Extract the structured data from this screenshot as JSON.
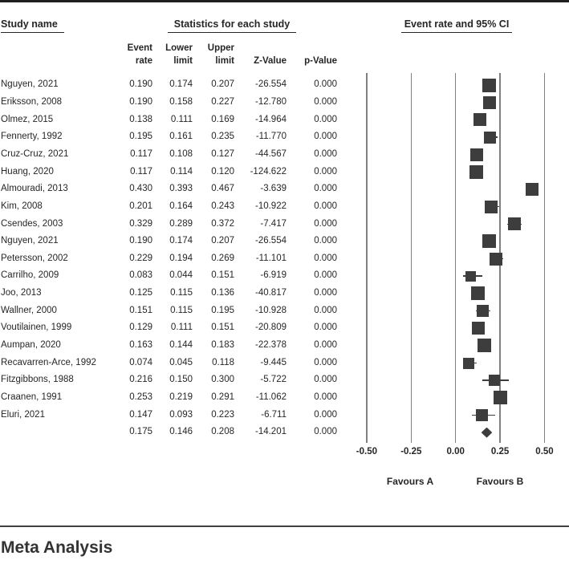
{
  "header": {
    "study_name_label": "Study name",
    "statistics_label": "Statistics for each study",
    "plot_label": "Event rate and 95% CI"
  },
  "columns": [
    {
      "id": "event_rate",
      "lines": [
        "Event",
        "rate"
      ]
    },
    {
      "id": "lower",
      "lines": [
        "Lower",
        "limit"
      ]
    },
    {
      "id": "upper",
      "lines": [
        "Upper",
        "limit"
      ]
    },
    {
      "id": "z",
      "lines": [
        "Z-Value"
      ]
    },
    {
      "id": "p",
      "lines": [
        "p-Value"
      ]
    }
  ],
  "chart_data": {
    "type": "forest",
    "title": "Event rate and 95% CI",
    "x_axis": {
      "range": [
        -0.5,
        0.5
      ],
      "ticks": [
        -0.5,
        -0.25,
        0,
        0.25,
        0.5
      ],
      "tick_labels": [
        "-0.50",
        "-0.25",
        "0.00",
        "0.25",
        "0.50"
      ]
    },
    "favours_left": "Favours A",
    "favours_right": "Favours B",
    "marker_color": "#3d3d3d",
    "gridline_color": "#808080",
    "studies": [
      {
        "name": "Nguyen, 2021",
        "event_rate": "0.190",
        "lower": "0.174",
        "upper": "0.207",
        "z": "-26.554",
        "p": "0.000",
        "marker_size": 17
      },
      {
        "name": "Eriksson, 2008",
        "event_rate": "0.190",
        "lower": "0.158",
        "upper": "0.227",
        "z": "-12.780",
        "p": "0.000",
        "marker_size": 16
      },
      {
        "name": "Olmez, 2015",
        "event_rate": "0.138",
        "lower": "0.111",
        "upper": "0.169",
        "z": "-14.964",
        "p": "0.000",
        "marker_size": 16
      },
      {
        "name": "Fennerty, 1992",
        "event_rate": "0.195",
        "lower": "0.161",
        "upper": "0.235",
        "z": "-11.770",
        "p": "0.000",
        "marker_size": 15
      },
      {
        "name": "Cruz-Cruz, 2021",
        "event_rate": "0.117",
        "lower": "0.108",
        "upper": "0.127",
        "z": "-44.567",
        "p": "0.000",
        "marker_size": 16
      },
      {
        "name": "Huang, 2020",
        "event_rate": "0.117",
        "lower": "0.114",
        "upper": "0.120",
        "z": "-124.622",
        "p": "0.000",
        "marker_size": 17
      },
      {
        "name": "Almouradi, 2013",
        "event_rate": "0.430",
        "lower": "0.393",
        "upper": "0.467",
        "z": "-3.639",
        "p": "0.000",
        "marker_size": 16
      },
      {
        "name": "Kim, 2008",
        "event_rate": "0.201",
        "lower": "0.164",
        "upper": "0.243",
        "z": "-10.922",
        "p": "0.000",
        "marker_size": 16
      },
      {
        "name": "Csendes, 2003",
        "event_rate": "0.329",
        "lower": "0.289",
        "upper": "0.372",
        "z": "-7.417",
        "p": "0.000",
        "marker_size": 16
      },
      {
        "name": "Nguyen, 2021",
        "event_rate": "0.190",
        "lower": "0.174",
        "upper": "0.207",
        "z": "-26.554",
        "p": "0.000",
        "marker_size": 17
      },
      {
        "name": "Petersson, 2002",
        "event_rate": "0.229",
        "lower": "0.194",
        "upper": "0.269",
        "z": "-11.101",
        "p": "0.000",
        "marker_size": 16
      },
      {
        "name": "Carrilho, 2009",
        "event_rate": "0.083",
        "lower": "0.044",
        "upper": "0.151",
        "z": "-6.919",
        "p": "0.000",
        "marker_size": 13
      },
      {
        "name": "Joo, 2013",
        "event_rate": "0.125",
        "lower": "0.115",
        "upper": "0.136",
        "z": "-40.817",
        "p": "0.000",
        "marker_size": 17
      },
      {
        "name": "Wallner, 2000",
        "event_rate": "0.151",
        "lower": "0.115",
        "upper": "0.195",
        "z": "-10.928",
        "p": "0.000",
        "marker_size": 15
      },
      {
        "name": "Voutilainen, 1999",
        "event_rate": "0.129",
        "lower": "0.111",
        "upper": "0.151",
        "z": "-20.809",
        "p": "0.000",
        "marker_size": 16
      },
      {
        "name": "Aumpan, 2020",
        "event_rate": "0.163",
        "lower": "0.144",
        "upper": "0.183",
        "z": "-22.378",
        "p": "0.000",
        "marker_size": 17
      },
      {
        "name": "Recavarren-Arce, 1992",
        "event_rate": "0.074",
        "lower": "0.045",
        "upper": "0.118",
        "z": "-9.445",
        "p": "0.000",
        "marker_size": 14
      },
      {
        "name": "Fitzgibbons, 1988",
        "event_rate": "0.216",
        "lower": "0.150",
        "upper": "0.300",
        "z": "-5.722",
        "p": "0.000",
        "marker_size": 14
      },
      {
        "name": "Craanen, 1991",
        "event_rate": "0.253",
        "lower": "0.219",
        "upper": "0.291",
        "z": "-11.062",
        "p": "0.000",
        "marker_size": 17
      },
      {
        "name": "Eluri, 2021",
        "event_rate": "0.147",
        "lower": "0.093",
        "upper": "0.223",
        "z": "-6.711",
        "p": "0.000",
        "marker_size": 15
      }
    ],
    "summary": {
      "event_rate": "0.175",
      "lower": "0.146",
      "upper": "0.208",
      "z": "-14.201",
      "p": "0.000"
    }
  },
  "footer": {
    "title": "Meta Analysis"
  }
}
